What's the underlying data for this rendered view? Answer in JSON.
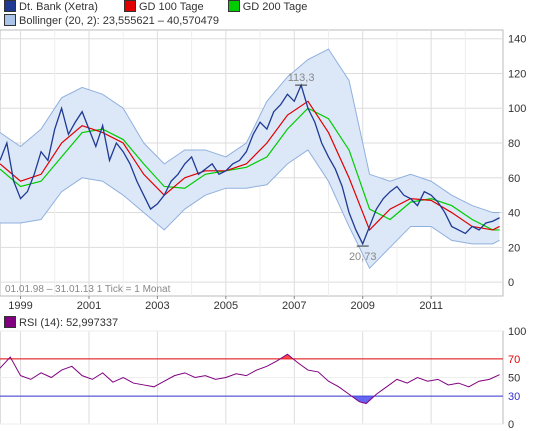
{
  "legend": {
    "items": [
      {
        "label": "Dt. Bank (Xetra)",
        "color": "#1f3a93"
      },
      {
        "label": "GD 100 Tage",
        "color": "#e00000"
      },
      {
        "label": "GD 200 Tage",
        "color": "#00cc00"
      }
    ],
    "bollinger": {
      "label": "Bollinger (20, 2): 23,555621  –  40,570479",
      "color": "#aac4ea"
    },
    "rsi": {
      "label": "RSI (14): 52,997337",
      "color": "#800080"
    }
  },
  "info_text": "01.01.98 – 31.01.13   1 Tick = 1 Monat",
  "chart_data": [
    {
      "type": "line",
      "ylim": [
        -8,
        145
      ],
      "xlim": [
        1998.4,
        2013.1
      ],
      "y_ticks": [
        "0",
        "20",
        "40",
        "60",
        "80",
        "100",
        "120",
        "140"
      ],
      "x_ticks": [
        "1999",
        "2001",
        "2003",
        "2005",
        "2007",
        "2009",
        "2011"
      ],
      "annotations": [
        {
          "text": "113,3",
          "x": 2007.2,
          "y": 113.3
        },
        {
          "text": "20,73",
          "x": 2009.0,
          "y": 20.73
        }
      ],
      "series": [
        {
          "name": "Dt. Bank (Xetra)",
          "x": [
            1998.4,
            1998.6,
            1998.8,
            1999.0,
            1999.2,
            1999.4,
            1999.6,
            1999.8,
            2000.0,
            2000.2,
            2000.4,
            2000.6,
            2000.8,
            2001.0,
            2001.2,
            2001.4,
            2001.6,
            2001.8,
            2002.0,
            2002.2,
            2002.4,
            2002.6,
            2002.8,
            2003.0,
            2003.2,
            2003.4,
            2003.6,
            2003.8,
            2004.0,
            2004.2,
            2004.4,
            2004.6,
            2004.8,
            2005.0,
            2005.2,
            2005.4,
            2005.6,
            2005.8,
            2006.0,
            2006.2,
            2006.4,
            2006.6,
            2006.8,
            2007.0,
            2007.2,
            2007.4,
            2007.6,
            2007.8,
            2008.0,
            2008.2,
            2008.4,
            2008.6,
            2008.8,
            2009.0,
            2009.2,
            2009.4,
            2009.6,
            2009.8,
            2010.0,
            2010.2,
            2010.4,
            2010.6,
            2010.8,
            2011.0,
            2011.2,
            2011.4,
            2011.6,
            2011.8,
            2012.0,
            2012.2,
            2012.4,
            2012.6,
            2012.8,
            2013.0
          ],
          "values": [
            70,
            80,
            58,
            48,
            52,
            62,
            75,
            70,
            88,
            100,
            85,
            92,
            98,
            88,
            78,
            90,
            70,
            80,
            75,
            68,
            58,
            50,
            42,
            45,
            50,
            58,
            62,
            68,
            72,
            62,
            65,
            68,
            62,
            64,
            68,
            70,
            75,
            85,
            92,
            88,
            98,
            102,
            108,
            104,
            113.3,
            100,
            92,
            80,
            72,
            65,
            55,
            40,
            30,
            22,
            32,
            42,
            48,
            52,
            55,
            50,
            48,
            44,
            52,
            50,
            46,
            40,
            32,
            30,
            28,
            32,
            30,
            34,
            35,
            37
          ]
        },
        {
          "name": "GD 100 Tage",
          "x": [
            1998.4,
            1999.0,
            1999.6,
            2000.2,
            2000.8,
            2001.4,
            2002.0,
            2002.6,
            2003.2,
            2003.8,
            2004.4,
            2005.0,
            2005.6,
            2006.2,
            2006.8,
            2007.4,
            2008.0,
            2008.6,
            2009.2,
            2009.8,
            2010.4,
            2011.0,
            2011.6,
            2012.2,
            2012.8,
            2013.0
          ],
          "values": [
            68,
            58,
            62,
            80,
            90,
            86,
            80,
            62,
            50,
            60,
            64,
            64,
            68,
            80,
            96,
            104,
            86,
            60,
            30,
            42,
            48,
            47,
            40,
            32,
            30,
            32
          ]
        },
        {
          "name": "GD 200 Tage",
          "x": [
            1998.4,
            1999.0,
            1999.6,
            2000.2,
            2000.8,
            2001.4,
            2002.0,
            2002.6,
            2003.2,
            2003.8,
            2004.4,
            2005.0,
            2005.6,
            2006.2,
            2006.8,
            2007.4,
            2008.0,
            2008.6,
            2009.2,
            2009.8,
            2010.4,
            2011.0,
            2011.6,
            2012.2,
            2012.8,
            2013.0
          ],
          "values": [
            65,
            55,
            58,
            72,
            86,
            88,
            82,
            68,
            55,
            54,
            62,
            64,
            66,
            72,
            88,
            100,
            94,
            76,
            42,
            36,
            46,
            48,
            44,
            36,
            30,
            30
          ]
        },
        {
          "name": "Bollinger (20, 2)",
          "x": [
            1998.4,
            1999.0,
            1999.6,
            2000.2,
            2000.8,
            2001.4,
            2002.0,
            2002.6,
            2003.2,
            2003.8,
            2004.4,
            2005.0,
            2005.6,
            2006.2,
            2006.8,
            2007.4,
            2008.0,
            2008.6,
            2009.2,
            2009.8,
            2010.4,
            2011.0,
            2011.6,
            2012.2,
            2012.8,
            2013.0
          ],
          "upper": [
            86,
            78,
            88,
            106,
            112,
            108,
            100,
            80,
            68,
            76,
            76,
            72,
            80,
            104,
            118,
            128,
            134,
            116,
            62,
            58,
            62,
            58,
            50,
            44,
            40,
            40
          ],
          "lower": [
            34,
            34,
            36,
            52,
            60,
            58,
            50,
            40,
            30,
            42,
            50,
            54,
            54,
            56,
            68,
            76,
            58,
            32,
            8,
            20,
            32,
            32,
            24,
            22,
            22,
            24
          ]
        }
      ]
    },
    {
      "type": "line",
      "ylim": [
        0,
        100
      ],
      "xlim": [
        1998.4,
        2013.1
      ],
      "y_ticks": [
        "0",
        "30",
        "50",
        "70",
        "100"
      ],
      "reference_lines": [
        70,
        30
      ],
      "series": [
        {
          "name": "RSI (14)",
          "x": [
            1998.4,
            1998.7,
            1999.0,
            1999.3,
            1999.6,
            1999.9,
            2000.2,
            2000.5,
            2000.8,
            2001.1,
            2001.4,
            2001.7,
            2002.0,
            2002.3,
            2002.6,
            2002.9,
            2003.2,
            2003.5,
            2003.8,
            2004.1,
            2004.4,
            2004.7,
            2005.0,
            2005.3,
            2005.6,
            2005.9,
            2006.2,
            2006.5,
            2006.8,
            2007.1,
            2007.4,
            2007.7,
            2008.0,
            2008.3,
            2008.6,
            2008.9,
            2009.1,
            2009.4,
            2009.7,
            2010.0,
            2010.3,
            2010.6,
            2010.9,
            2011.2,
            2011.5,
            2011.8,
            2012.1,
            2012.4,
            2012.7,
            2013.0
          ],
          "values": [
            60,
            72,
            52,
            48,
            55,
            50,
            58,
            62,
            52,
            48,
            55,
            45,
            50,
            44,
            42,
            40,
            46,
            52,
            55,
            50,
            52,
            48,
            50,
            54,
            52,
            58,
            62,
            68,
            75,
            66,
            58,
            56,
            46,
            40,
            32,
            24,
            22,
            32,
            40,
            48,
            44,
            50,
            46,
            48,
            42,
            44,
            40,
            46,
            48,
            53
          ]
        }
      ]
    }
  ]
}
